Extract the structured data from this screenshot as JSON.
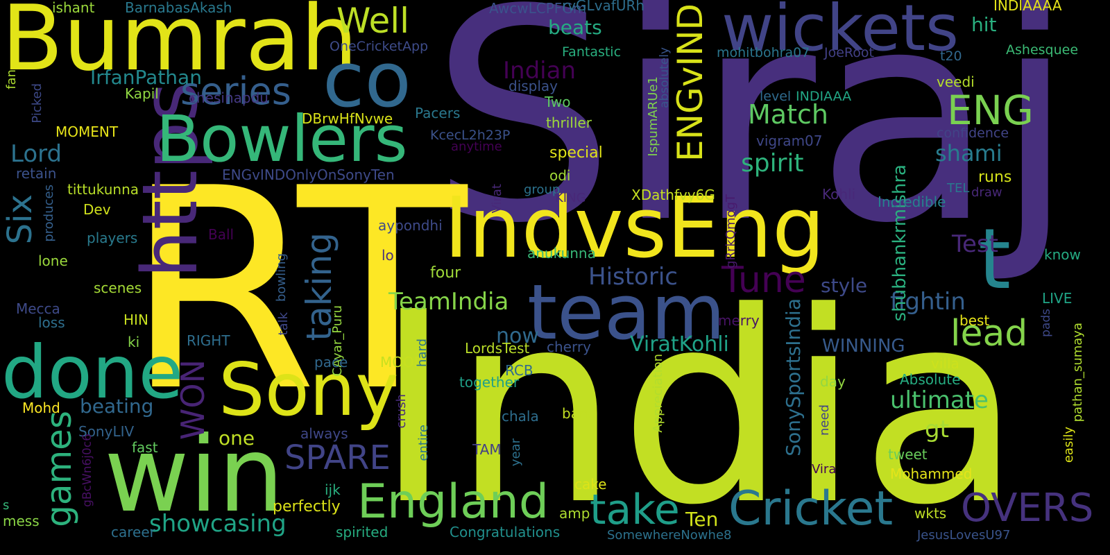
{
  "words": [
    {
      "text": "Siraj",
      "color": "#472f7d"
    },
    {
      "text": "India",
      "color": "#c2df23"
    },
    {
      "text": "RT",
      "color": "#fde725"
    },
    {
      "text": "IndvsEng",
      "color": "#f1e51d"
    },
    {
      "text": "Bumrah",
      "color": "#e2e418"
    },
    {
      "text": "https",
      "color": "#482878"
    },
    {
      "text": "team",
      "color": "#3b528b"
    },
    {
      "text": "win",
      "color": "#7ad151"
    },
    {
      "text": "co",
      "color": "#31688e"
    },
    {
      "text": "wickets",
      "color": "#414487"
    },
    {
      "text": "Bowlers",
      "color": "#35b779"
    },
    {
      "text": "done",
      "color": "#22a884"
    },
    {
      "text": "Sony",
      "color": "#dde318"
    },
    {
      "text": "t",
      "color": "#25858e"
    },
    {
      "text": "England",
      "color": "#6ece58"
    },
    {
      "text": "Cricket",
      "color": "#2a788e"
    },
    {
      "text": "take",
      "color": "#1f9e89"
    },
    {
      "text": "OVERS",
      "color": "#46327e"
    },
    {
      "text": "ENGvIND",
      "color": "#d8e219"
    },
    {
      "text": "ENG",
      "color": "#7ad151"
    },
    {
      "text": "Well",
      "color": "#bddf26"
    },
    {
      "text": "series",
      "color": "#355f8d"
    },
    {
      "text": "taking",
      "color": "#33638d"
    },
    {
      "text": "games",
      "color": "#2db27d"
    },
    {
      "text": "SPARE",
      "color": "#414487"
    },
    {
      "text": "Tune",
      "color": "#440154"
    },
    {
      "text": "lead",
      "color": "#84d44b"
    },
    {
      "text": "WON",
      "color": "#482475"
    },
    {
      "text": "Six",
      "color": "#2c728e"
    },
    {
      "text": "Match",
      "color": "#5ec962"
    },
    {
      "text": "spirit",
      "color": "#2eb37c"
    },
    {
      "text": "showcasing",
      "color": "#20a486"
    },
    {
      "text": "Historic",
      "color": "#3b528b"
    },
    {
      "text": "TeamIndia",
      "color": "#86d549"
    },
    {
      "text": "Indian",
      "color": "#440154"
    },
    {
      "text": "IrfanPathan",
      "color": "#23898e"
    },
    {
      "text": "beats",
      "color": "#25ab82"
    },
    {
      "text": "hit",
      "color": "#29af7f"
    },
    {
      "text": "Lord",
      "color": "#2c728e"
    },
    {
      "text": "shami",
      "color": "#287c8e"
    },
    {
      "text": "Test",
      "color": "#482878"
    },
    {
      "text": "fightin",
      "color": "#355f8d"
    },
    {
      "text": "ultimate",
      "color": "#4ac16d"
    },
    {
      "text": "ViratKohli",
      "color": "#1fa287"
    },
    {
      "text": "SonySportsIndia",
      "color": "#2d708e"
    },
    {
      "text": "shubhankrmishra",
      "color": "#2ab07f"
    },
    {
      "text": "beating",
      "color": "#31688e"
    },
    {
      "text": "style",
      "color": "#3e4a89"
    },
    {
      "text": "now",
      "color": "#306a8e"
    },
    {
      "text": "gt",
      "color": "#a8db34"
    },
    {
      "text": "one",
      "color": "#c0df25"
    },
    {
      "text": "Ten",
      "color": "#d2e21b"
    },
    {
      "text": "WINNING",
      "color": "#375a8c"
    },
    {
      "text": "BarnabasAkash",
      "color": "#29798e"
    },
    {
      "text": "ishant",
      "color": "#9bd93c"
    },
    {
      "text": "AwcwLCPFGm",
      "color": "#3b528b"
    },
    {
      "text": "rvGLvafURh",
      "color": "#2e6e8e"
    },
    {
      "text": "INDIAAAA",
      "color": "#e5e419"
    },
    {
      "text": "OneCricketApp",
      "color": "#3e4c8a"
    },
    {
      "text": "mohitbohra07",
      "color": "#2a768e"
    },
    {
      "text": "JoeRoot",
      "color": "#424086"
    },
    {
      "text": "t20",
      "color": "#31688e"
    },
    {
      "text": "Ashesquee",
      "color": "#3bbb75"
    },
    {
      "text": "Fantastic",
      "color": "#29af7f"
    },
    {
      "text": "veedi",
      "color": "#b5de2b"
    },
    {
      "text": "fan",
      "color": "#addc30"
    },
    {
      "text": "Picked",
      "color": "#3e4a89"
    },
    {
      "text": "Kapil",
      "color": "#90d743"
    },
    {
      "text": "display",
      "color": "#3b528b"
    },
    {
      "text": "level",
      "color": "#2f6b8e"
    },
    {
      "text": "INDIAAA",
      "color": "#22a785"
    },
    {
      "text": "absolutely",
      "color": "#39568c"
    },
    {
      "text": "chesinapdu",
      "color": "#443983"
    },
    {
      "text": "Two",
      "color": "#5ec962"
    },
    {
      "text": "MOMENT",
      "color": "#e7e419"
    },
    {
      "text": "DBrwHfNvwe",
      "color": "#dae319"
    },
    {
      "text": "Pacers",
      "color": "#2a788e"
    },
    {
      "text": "thriller",
      "color": "#9fda3a"
    },
    {
      "text": "confidence",
      "color": "#414487"
    },
    {
      "text": "KcecL2h23P",
      "color": "#3b528b"
    },
    {
      "text": "vigram07",
      "color": "#3f4788"
    },
    {
      "text": "IspumARUe1",
      "color": "#7fd34e"
    },
    {
      "text": "anytime",
      "color": "#440154"
    },
    {
      "text": "special",
      "color": "#e2e418"
    },
    {
      "text": "retain",
      "color": "#3b528b"
    },
    {
      "text": "ENGvINDOnlyOnSonyTen",
      "color": "#3e4a89"
    },
    {
      "text": "odi",
      "color": "#a2da37"
    },
    {
      "text": "runs",
      "color": "#d5e21a"
    },
    {
      "text": "tittukunna",
      "color": "#b8de29"
    },
    {
      "text": "group",
      "color": "#2c728e"
    },
    {
      "text": "KING",
      "color": "#482878"
    },
    {
      "text": "XDathfvy6G",
      "color": "#c5e021"
    },
    {
      "text": "Kohli",
      "color": "#482878"
    },
    {
      "text": "TEL",
      "color": "#2a788e"
    },
    {
      "text": "draw",
      "color": "#482878"
    },
    {
      "text": "Incredible",
      "color": "#26828e"
    },
    {
      "text": "Dev",
      "color": "#d0e11c"
    },
    {
      "text": "produces",
      "color": "#35608d"
    },
    {
      "text": "gRrkQmogT",
      "color": "#481a6c"
    },
    {
      "text": "players",
      "color": "#297b8e"
    },
    {
      "text": "Ball",
      "color": "#440154"
    },
    {
      "text": "Virat",
      "color": "#482878"
    },
    {
      "text": "aypondhi",
      "color": "#3e4a89"
    },
    {
      "text": "know",
      "color": "#25ab82"
    },
    {
      "text": "lone",
      "color": "#9bd93c"
    },
    {
      "text": "lo",
      "color": "#472f7d"
    },
    {
      "text": "scenes",
      "color": "#a5db36"
    },
    {
      "text": "four",
      "color": "#a0da39"
    },
    {
      "text": "bowling",
      "color": "#355f8d"
    },
    {
      "text": "anukunna",
      "color": "#37b878"
    },
    {
      "text": "Mecca",
      "color": "#3e4a89"
    },
    {
      "text": "HIN",
      "color": "#c8e020"
    },
    {
      "text": "LIVE",
      "color": "#20a486"
    },
    {
      "text": "loss",
      "color": "#2e6f8e"
    },
    {
      "text": "merry",
      "color": "#471365"
    },
    {
      "text": "best",
      "color": "#e7e419"
    },
    {
      "text": "talk",
      "color": "#3f4889"
    },
    {
      "text": "ki",
      "color": "#86d549"
    },
    {
      "text": "RIGHT",
      "color": "#2e6e8e"
    },
    {
      "text": "CAyar_Puru",
      "color": "#95d840"
    },
    {
      "text": "cherry",
      "color": "#3b528b"
    },
    {
      "text": "pads",
      "color": "#3e4989"
    },
    {
      "text": "easily",
      "color": "#dde318"
    },
    {
      "text": "pathan_sumaya",
      "color": "#b0dd2f"
    },
    {
      "text": "LordsTest",
      "color": "#bade28"
    },
    {
      "text": "MOOD",
      "color": "#c8e020"
    },
    {
      "text": "pace",
      "color": "#31688e"
    },
    {
      "text": "hard",
      "color": "#2c738e"
    },
    {
      "text": "villa",
      "color": "#cde11d"
    },
    {
      "text": "Appreciation",
      "color": "#b2dd2d"
    },
    {
      "text": "RCB",
      "color": "#306a8e"
    },
    {
      "text": "together",
      "color": "#1fa088"
    },
    {
      "text": "Absolute",
      "color": "#26ad81"
    },
    {
      "text": "day",
      "color": "#93d741"
    },
    {
      "text": "Mohd",
      "color": "#fde725"
    },
    {
      "text": "SonyLIV",
      "color": "#33638d"
    },
    {
      "text": "gBcWn6j0c6",
      "color": "#471063"
    },
    {
      "text": "fast",
      "color": "#63cb5f"
    },
    {
      "text": "chala",
      "color": "#2e6e8e"
    },
    {
      "text": "band",
      "color": "#c2df23"
    },
    {
      "text": "crush",
      "color": "#472c7a"
    },
    {
      "text": "year",
      "color": "#2d718e"
    },
    {
      "text": "always",
      "color": "#3f4788"
    },
    {
      "text": "entire",
      "color": "#2a768e"
    },
    {
      "text": "need",
      "color": "#414487"
    },
    {
      "text": "TAM",
      "color": "#424086"
    },
    {
      "text": "tweet",
      "color": "#69cd5b"
    },
    {
      "text": "Vira",
      "color": "#440154"
    },
    {
      "text": "Mohammed",
      "color": "#e5e419"
    },
    {
      "text": "cake",
      "color": "#dde318"
    },
    {
      "text": "ijk",
      "color": "#29af7f"
    },
    {
      "text": "perfectly",
      "color": "#dde318"
    },
    {
      "text": "amp",
      "color": "#addc30"
    },
    {
      "text": "wkts",
      "color": "#c0df25"
    },
    {
      "text": "mess",
      "color": "#8bd646"
    },
    {
      "text": "career",
      "color": "#2d708e"
    },
    {
      "text": "spirited",
      "color": "#26ad81"
    },
    {
      "text": "Congratulations",
      "color": "#21908d"
    },
    {
      "text": "SomewhereNowhe8",
      "color": "#2c728e"
    },
    {
      "text": "JesusLovesU97",
      "color": "#3a548c"
    },
    {
      "text": "s",
      "color": "#35b779"
    }
  ]
}
